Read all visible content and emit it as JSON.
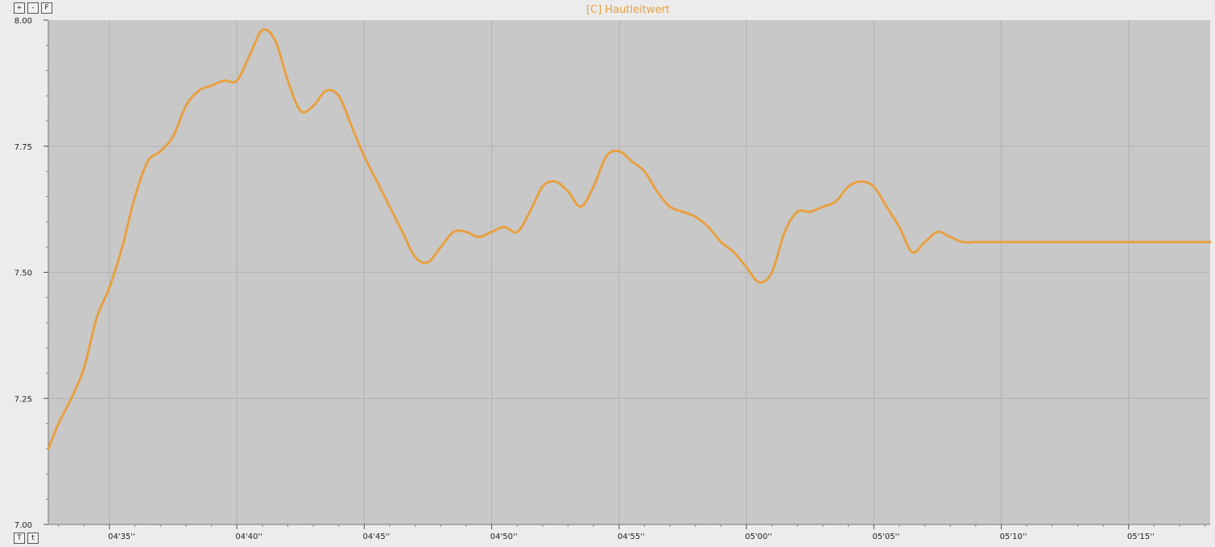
{
  "toolbar": {
    "zoom_in": "+",
    "zoom_out": "-",
    "fit": "F",
    "top_option": "T",
    "time_option": "t"
  },
  "chart_data": {
    "type": "line",
    "title": "[C] Hautleitwert",
    "xlabel": "",
    "ylabel": "",
    "x_unit": "seconds",
    "xlim": [
      272.6,
      318.2
    ],
    "ylim": [
      7.0,
      8.0
    ],
    "grid": true,
    "x_ticks": [
      {
        "value": 275,
        "label": "04'35''"
      },
      {
        "value": 280,
        "label": "04'40''"
      },
      {
        "value": 285,
        "label": "04'45''"
      },
      {
        "value": 290,
        "label": "04'50''"
      },
      {
        "value": 295,
        "label": "04'55''"
      },
      {
        "value": 300,
        "label": "05'00''"
      },
      {
        "value": 305,
        "label": "05'05''"
      },
      {
        "value": 310,
        "label": "05'10''"
      },
      {
        "value": 315,
        "label": "05'15''"
      }
    ],
    "y_ticks": [
      {
        "value": 7.0,
        "label": "7.00"
      },
      {
        "value": 7.25,
        "label": "7.25"
      },
      {
        "value": 7.5,
        "label": "7.50"
      },
      {
        "value": 7.75,
        "label": "7.75"
      },
      {
        "value": 8.0,
        "label": "8.00"
      }
    ],
    "colors": {
      "line": "#e8a040",
      "plot_bg": "#c8c8c8",
      "grid": "#b2b2b2"
    },
    "series": [
      {
        "x": [
          272.6,
          273.0,
          273.5,
          274.0,
          274.5,
          275.0,
          275.5,
          276.0,
          276.5,
          277.0,
          277.5,
          278.0,
          278.5,
          279.0,
          279.5,
          280.0,
          280.5,
          281.0,
          281.5,
          282.0,
          282.5,
          283.0,
          283.5,
          284.0,
          284.5,
          285.0,
          285.5,
          286.0,
          286.5,
          287.0,
          287.5,
          288.0,
          288.5,
          289.0,
          289.5,
          290.0,
          290.5,
          291.0,
          291.5,
          292.0,
          292.5,
          293.0,
          293.5,
          294.0,
          294.5,
          295.0,
          295.5,
          296.0,
          296.5,
          297.0,
          297.5,
          298.0,
          298.5,
          299.0,
          299.5,
          300.0,
          300.5,
          301.0,
          301.5,
          302.0,
          302.5,
          303.0,
          303.5,
          304.0,
          304.5,
          305.0,
          305.5,
          306.0,
          306.5,
          307.0,
          307.5,
          308.0,
          308.5,
          309.0,
          309.5,
          310.0,
          310.5,
          311.0,
          311.5,
          312.0,
          312.5,
          313.0,
          313.5,
          314.0,
          314.5,
          315.0,
          315.5,
          316.0,
          316.5,
          317.0,
          317.5,
          318.0,
          318.2
        ],
        "y": [
          7.15,
          7.2,
          7.25,
          7.31,
          7.41,
          7.47,
          7.55,
          7.65,
          7.72,
          7.74,
          7.77,
          7.83,
          7.86,
          7.87,
          7.88,
          7.88,
          7.93,
          7.98,
          7.96,
          7.88,
          7.82,
          7.83,
          7.86,
          7.85,
          7.79,
          7.73,
          7.68,
          7.63,
          7.58,
          7.53,
          7.52,
          7.55,
          7.58,
          7.58,
          7.57,
          7.58,
          7.59,
          7.58,
          7.62,
          7.67,
          7.68,
          7.66,
          7.63,
          7.67,
          7.73,
          7.74,
          7.72,
          7.7,
          7.66,
          7.63,
          7.62,
          7.61,
          7.59,
          7.56,
          7.54,
          7.51,
          7.48,
          7.5,
          7.58,
          7.62,
          7.62,
          7.63,
          7.64,
          7.67,
          7.68,
          7.67,
          7.63,
          7.59,
          7.54,
          7.56,
          7.58,
          7.57,
          7.56,
          7.56,
          7.56,
          7.56,
          7.56,
          7.56,
          7.56,
          7.56,
          7.56,
          7.56,
          7.56,
          7.56,
          7.56,
          7.56,
          7.56,
          7.56,
          7.56,
          7.56,
          7.56,
          7.56,
          7.56
        ]
      }
    ]
  }
}
